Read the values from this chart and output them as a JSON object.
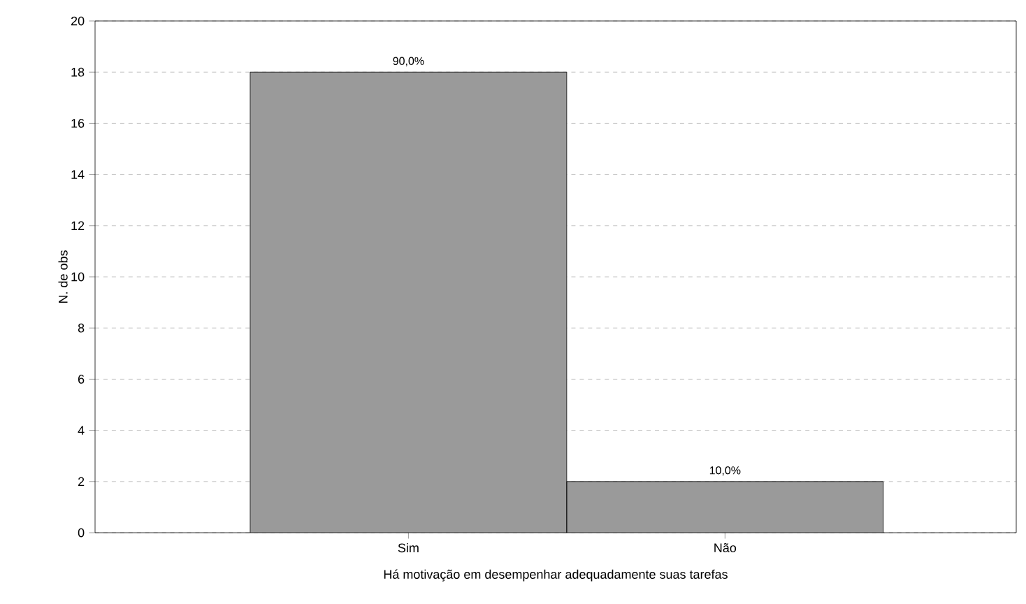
{
  "chart_data": {
    "type": "bar",
    "xlabel": "Há motivação em desempenhar adequadamente suas tarefas",
    "ylabel": "N. de obs",
    "categories": [
      "Sim",
      "Não"
    ],
    "values": [
      18,
      2
    ],
    "annotations": [
      {
        "text": "90,0%",
        "x": "Sim",
        "y": 18
      },
      {
        "text": "10,0%",
        "x": "Não",
        "y": 2
      }
    ],
    "color": "#9a9a9a",
    "ylim": [
      0,
      20
    ],
    "yticks": [
      0,
      2,
      4,
      6,
      8,
      10,
      12,
      14,
      16,
      18,
      20
    ],
    "grid": "y"
  }
}
